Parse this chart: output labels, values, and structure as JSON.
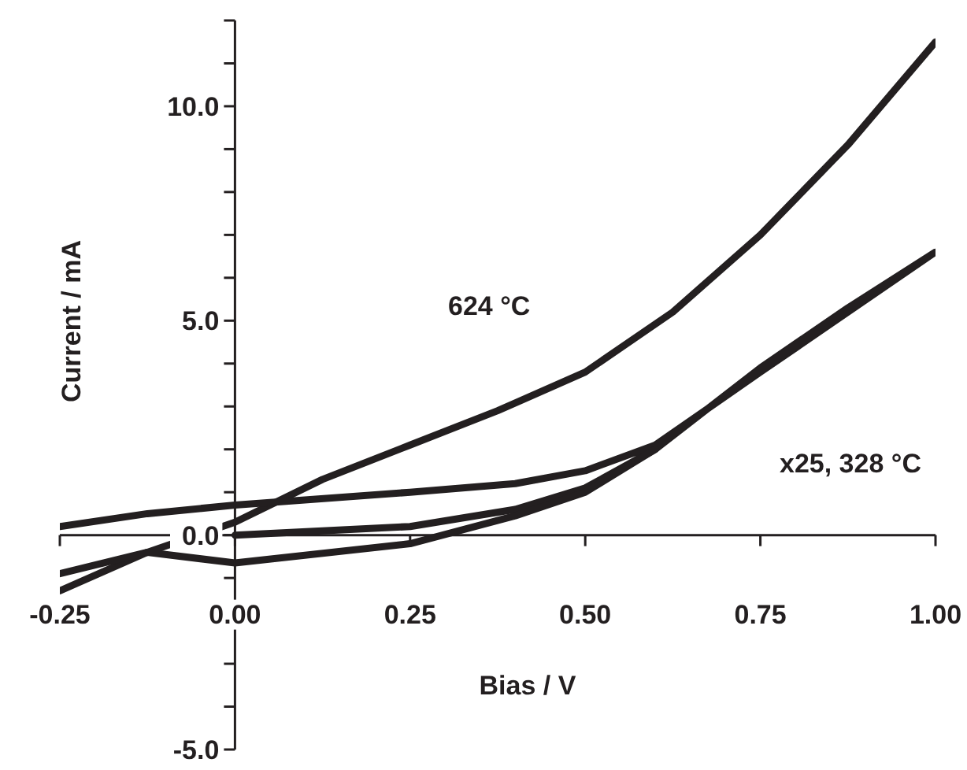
{
  "chart_data": {
    "type": "line",
    "xlabel": "Bias / V",
    "ylabel": "Current / mA",
    "xlim": [
      -0.25,
      1.0
    ],
    "ylim": [
      -5,
      12
    ],
    "xticks": [
      {
        "value": -0.25,
        "label": "-0.25"
      },
      {
        "value": 0,
        "label": "0.00"
      },
      {
        "value": 0.25,
        "label": "0.25"
      },
      {
        "value": 0.5,
        "label": "0.50"
      },
      {
        "value": 0.75,
        "label": "0.75"
      },
      {
        "value": 1.0,
        "label": "1.00"
      }
    ],
    "yticks": [
      {
        "value": -5,
        "label": "-5.0"
      },
      {
        "value": -4,
        "label": null
      },
      {
        "value": -3,
        "label": null
      },
      {
        "value": -2,
        "label": null
      },
      {
        "value": -1,
        "label": null
      },
      {
        "value": 0,
        "label": "0.0"
      },
      {
        "value": 1,
        "label": null
      },
      {
        "value": 2,
        "label": null
      },
      {
        "value": 3,
        "label": null
      },
      {
        "value": 4,
        "label": null
      },
      {
        "value": 5,
        "label": "5.0"
      },
      {
        "value": 6,
        "label": null
      },
      {
        "value": 7,
        "label": null
      },
      {
        "value": 8,
        "label": null
      },
      {
        "value": 9,
        "label": null
      },
      {
        "value": 10,
        "label": "10.0"
      },
      {
        "value": 11,
        "label": null
      },
      {
        "value": 12,
        "label": null
      }
    ],
    "marker": "none",
    "line_style": "solid",
    "series": [
      {
        "name": "624 °C",
        "color": "#231f20",
        "x": [
          -0.25,
          -0.125,
          0,
          0.125,
          0.25,
          0.375,
          0.5,
          0.625,
          0.75,
          0.875,
          1.0
        ],
        "values": [
          -1.3,
          -0.4,
          0.3,
          1.3,
          2.1,
          2.9,
          3.8,
          5.2,
          7.0,
          9.1,
          11.5
        ]
      },
      {
        "name": "x25, 328 °C",
        "color": "#231f20",
        "x": [
          0,
          0.25,
          0.4,
          0.5,
          0.6,
          0.75,
          0.875,
          1.0,
          0.875,
          0.75,
          0.6,
          0.5,
          0.4,
          0.25,
          0,
          -0.125,
          -0.25
        ],
        "values": [
          0,
          0.2,
          0.6,
          1.1,
          2.0,
          3.9,
          5.3,
          6.6,
          5.2,
          3.8,
          2.1,
          1.5,
          1.2,
          1.0,
          0.7,
          0.5,
          0.2
        ]
      },
      {
        "color": "#231f20",
        "x": [
          -0.25,
          -0.125,
          0,
          0.25,
          0.4,
          0.5,
          0.6
        ],
        "values": [
          -0.9,
          -0.4,
          -0.65,
          -0.2,
          0.45,
          1.0,
          2.0
        ]
      }
    ]
  }
}
